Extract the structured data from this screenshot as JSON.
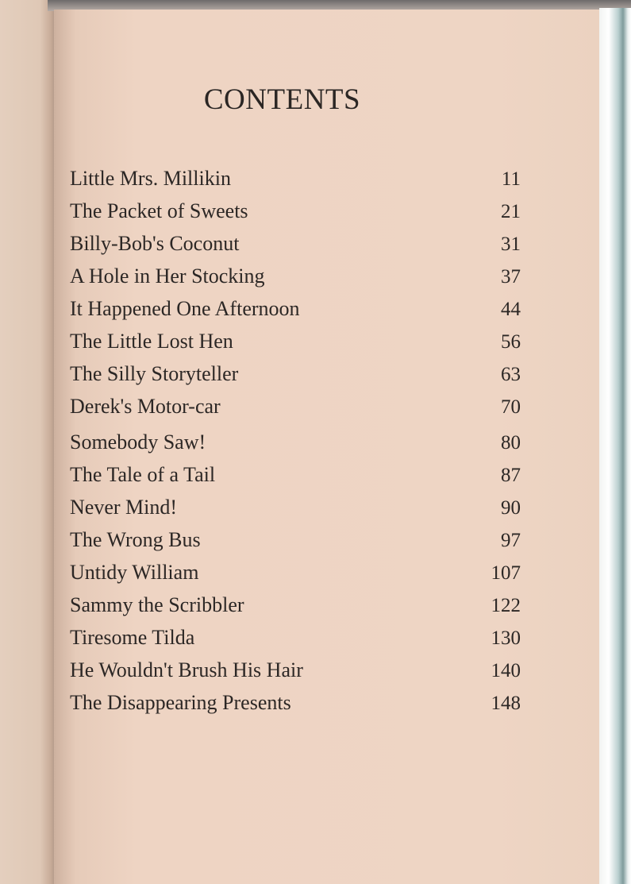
{
  "title": "CONTENTS",
  "entries": [
    {
      "title": "Little Mrs. Millikin",
      "page": "11"
    },
    {
      "title": "The Packet of Sweets",
      "page": "21"
    },
    {
      "title": "Billy-Bob's Coconut",
      "page": "31"
    },
    {
      "title": "A  Hole in Her Stocking",
      "page": "37"
    },
    {
      "title": "It Happened One Afternoon",
      "page": "44"
    },
    {
      "title": "The Little Lost Hen",
      "page": "56"
    },
    {
      "title": "The Silly Storyteller",
      "page": "63"
    },
    {
      "title": "Derek's Motor-car",
      "page": "70"
    },
    {
      "title": "Somebody Saw!",
      "page": "80"
    },
    {
      "title": "The Tale of a Tail",
      "page": "87"
    },
    {
      "title": "Never Mind!",
      "page": "90"
    },
    {
      "title": "The Wrong Bus",
      "page": "97"
    },
    {
      "title": "Untidy William",
      "page": "107"
    },
    {
      "title": "Sammy the Scribbler",
      "page": "122"
    },
    {
      "title": "Tiresome Tilda",
      "page": "130"
    },
    {
      "title": "He Wouldn't Brush His Hair",
      "page": "140"
    },
    {
      "title": "The Disappearing Presents",
      "page": "148"
    }
  ]
}
